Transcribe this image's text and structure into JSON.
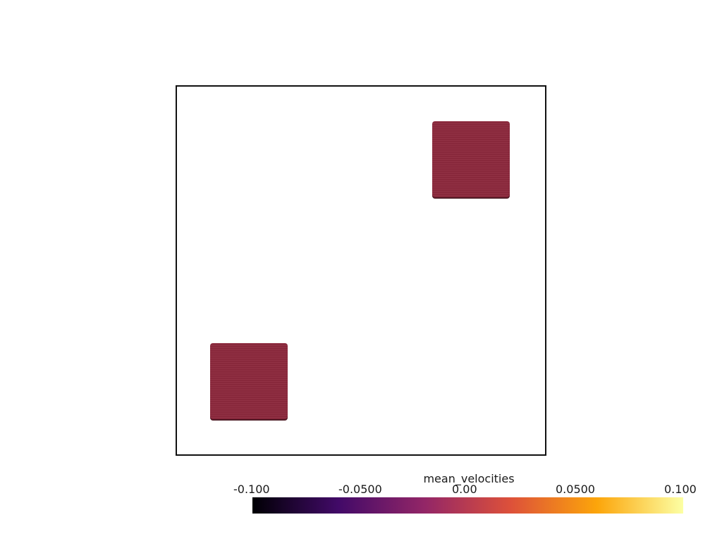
{
  "scene": {
    "background_color": "#ffffff",
    "outline_color": "#111111",
    "block_color": "#8e2a3e",
    "blocks": [
      {
        "name": "block-top-right",
        "value": 0.0
      },
      {
        "name": "block-bottom-left",
        "value": 0.0
      }
    ]
  },
  "colorbar": {
    "title": "mean_velocities",
    "colormap": "inferno",
    "range": [
      -0.1,
      0.1
    ],
    "ticks": [
      "-0.100",
      "-0.0500",
      "0.00",
      "0.0500",
      "0.100"
    ],
    "colors": [
      "#000004",
      "#420a68",
      "#932667",
      "#dd513a",
      "#fca50a",
      "#fcffa4"
    ]
  }
}
